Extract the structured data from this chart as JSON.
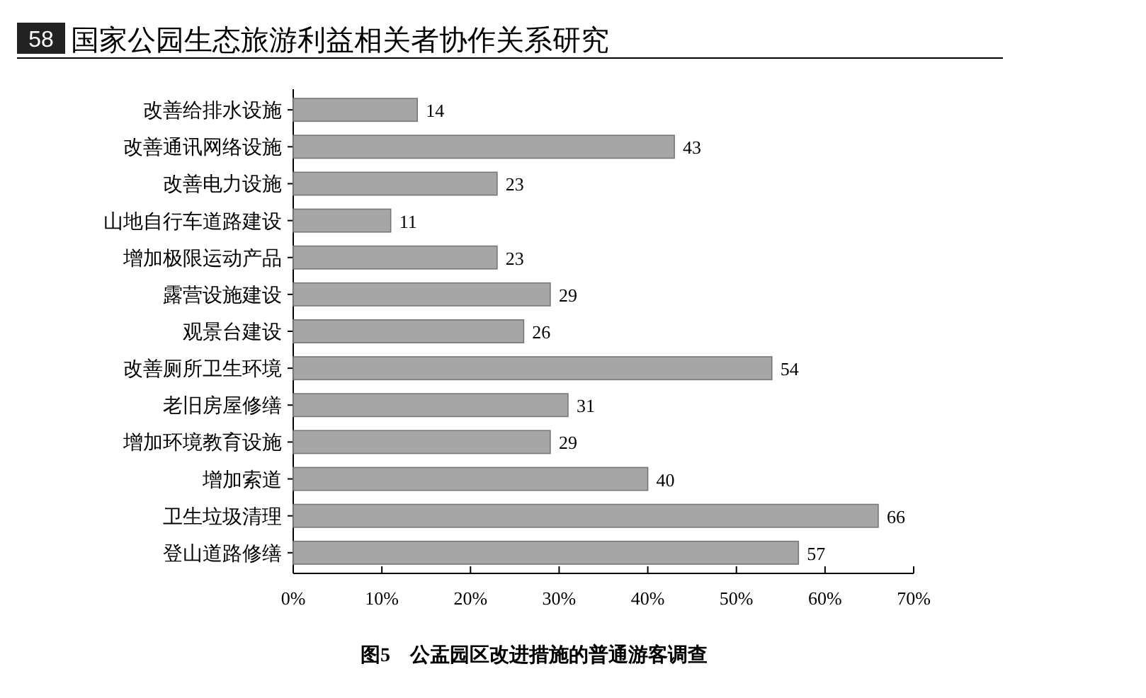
{
  "chart_data": {
    "type": "bar",
    "orientation": "horizontal",
    "title": "图5　公盂园区改进措施的普通游客调查",
    "annotations": [
      "58",
      "国家公园生态旅游利益相关者协作关系研究"
    ],
    "categories": [
      "改善给排水设施",
      "改善通讯网络设施",
      "改善电力设施",
      "山地自行车道路建设",
      "增加极限运动产品",
      "露营设施建设",
      "观景台建设",
      "改善厕所卫生环境",
      "老旧房屋修缮",
      "增加环境教育设施",
      "增加索道",
      "卫生垃圾清理",
      "登山道路修缮"
    ],
    "values": [
      14,
      43,
      23,
      11,
      23,
      29,
      26,
      54,
      31,
      29,
      40,
      66,
      57
    ],
    "color": "#a6a6a6",
    "data_labels": true,
    "xlim": [
      0,
      70
    ],
    "xticks": [
      {
        "value": 0,
        "label": "0%"
      },
      {
        "value": 10,
        "label": "10%"
      },
      {
        "value": 20,
        "label": "20%"
      },
      {
        "value": 30,
        "label": "30%"
      },
      {
        "value": 40,
        "label": "40%"
      },
      {
        "value": 50,
        "label": "50%"
      },
      {
        "value": 60,
        "label": "60%"
      },
      {
        "value": 70,
        "label": "70%"
      }
    ]
  }
}
